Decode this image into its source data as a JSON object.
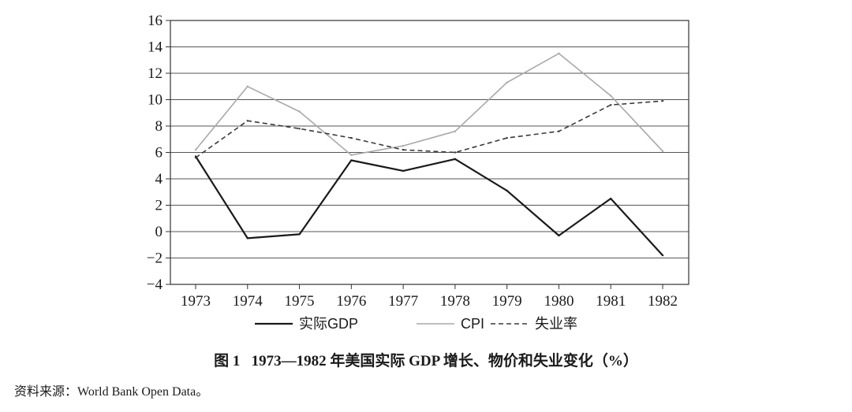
{
  "chart_data": {
    "type": "line",
    "x": [
      "1973",
      "1974",
      "1975",
      "1976",
      "1977",
      "1978",
      "1979",
      "1980",
      "1981",
      "1982"
    ],
    "ylim": [
      -4,
      16
    ],
    "yticks": [
      "16",
      "14",
      "12",
      "10",
      "8",
      "6",
      "4",
      "2",
      "0",
      "−2",
      "−4"
    ],
    "ytick_values": [
      16,
      14,
      12,
      10,
      8,
      6,
      4,
      2,
      0,
      -2,
      -4
    ],
    "grid": true,
    "legend_position": "bottom",
    "series": [
      {
        "name": "实际GDP",
        "values": [
          5.7,
          -0.5,
          -0.2,
          5.4,
          4.6,
          5.5,
          3.1,
          -0.3,
          2.5,
          -1.8
        ],
        "color": "#1a1a1a",
        "style": "solid"
      },
      {
        "name": "CPI",
        "values": [
          6.2,
          11.0,
          9.1,
          5.8,
          6.5,
          7.6,
          11.3,
          13.5,
          10.3,
          6.1
        ],
        "color": "#a8a8a8",
        "style": "solid"
      },
      {
        "name": "失业率",
        "values": [
          5.6,
          8.4,
          7.8,
          7.1,
          6.2,
          6.0,
          7.1,
          7.6,
          9.6,
          9.9
        ],
        "color": "#3a3a3a",
        "style": "dashed"
      }
    ]
  },
  "caption": {
    "label": "图 1",
    "text": "1973—1982 年美国实际 GDP 增长、物价和失业变化（%）"
  },
  "source": "资料来源：World Bank Open Data。"
}
